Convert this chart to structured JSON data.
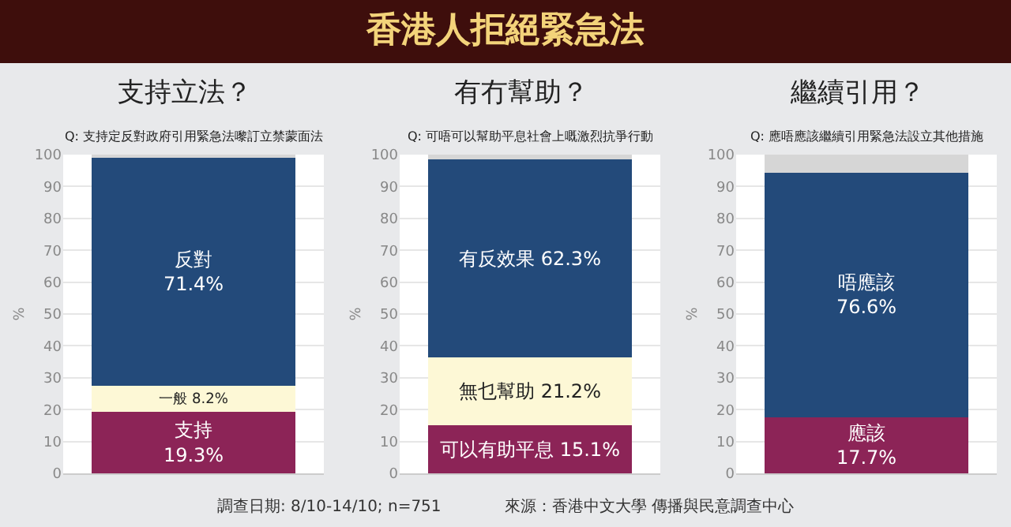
{
  "chart_data": [
    {
      "type": "bar",
      "title": "支持立法？",
      "subtitle": "Q: 支持定反對政府引用緊急法嚟訂立禁蒙面法",
      "ylabel": "%",
      "categories": [
        null
      ],
      "stacked": true,
      "ylim": [
        0,
        100
      ],
      "yticks": [
        0,
        10,
        20,
        30,
        40,
        50,
        60,
        70,
        80,
        90,
        100
      ],
      "grid": "y",
      "legend": false,
      "series": [
        {
          "name": "支持",
          "color": "#8c2457",
          "values": [
            19.3
          ],
          "value_labels": [
            "19.3%"
          ]
        },
        {
          "name": "一般",
          "color": "#fdf8d6",
          "values": [
            8.2
          ],
          "value_labels": [
            "8.2%"
          ]
        },
        {
          "name": "反對",
          "color": "#234a7a",
          "values": [
            71.4
          ],
          "value_labels": [
            "71.4%"
          ]
        },
        {
          "color": "#d6d6d6",
          "values": [
            1.1
          ]
        }
      ],
      "annotations": [
        "香港人拒絕緊急法",
        "調查日期: 8/10-14/10; n=751",
        "來源：香港中文大學 傳播與民意調查中心"
      ]
    },
    {
      "type": "bar",
      "title": "有冇幫助？",
      "subtitle": "Q: 可唔可以幫助平息社會上嘅激烈抗爭行動",
      "ylabel": "%",
      "categories": [
        null
      ],
      "stacked": true,
      "ylim": [
        0,
        100
      ],
      "yticks": [
        0,
        10,
        20,
        30,
        40,
        50,
        60,
        70,
        80,
        90,
        100
      ],
      "grid": "y",
      "legend": false,
      "series": [
        {
          "name": "可以有助平息",
          "color": "#8c2457",
          "values": [
            15.1
          ],
          "value_labels": [
            "15.1%"
          ]
        },
        {
          "name": "無乜幫助",
          "color": "#fdf8d6",
          "values": [
            21.2
          ],
          "value_labels": [
            "21.2%"
          ]
        },
        {
          "name": "有反效果",
          "color": "#234a7a",
          "values": [
            62.3
          ],
          "value_labels": [
            "62.3%"
          ]
        },
        {
          "color": "#d6d6d6",
          "values": [
            1.4
          ]
        }
      ]
    },
    {
      "type": "bar",
      "title": "繼續引用？",
      "subtitle": "Q: 應唔應該繼續引用緊急法設立其他措施",
      "ylabel": "%",
      "categories": [
        null
      ],
      "stacked": true,
      "ylim": [
        0,
        100
      ],
      "yticks": [
        0,
        10,
        20,
        30,
        40,
        50,
        60,
        70,
        80,
        90,
        100
      ],
      "grid": "y",
      "legend": false,
      "series": [
        {
          "name": "應該",
          "color": "#8c2457",
          "values": [
            17.7
          ],
          "value_labels": [
            "17.7%"
          ]
        },
        {
          "name": "唔應該",
          "color": "#234a7a",
          "values": [
            76.6
          ],
          "value_labels": [
            "76.6%"
          ]
        },
        {
          "color": "#d6d6d6",
          "values": [
            5.7
          ]
        }
      ]
    }
  ]
}
